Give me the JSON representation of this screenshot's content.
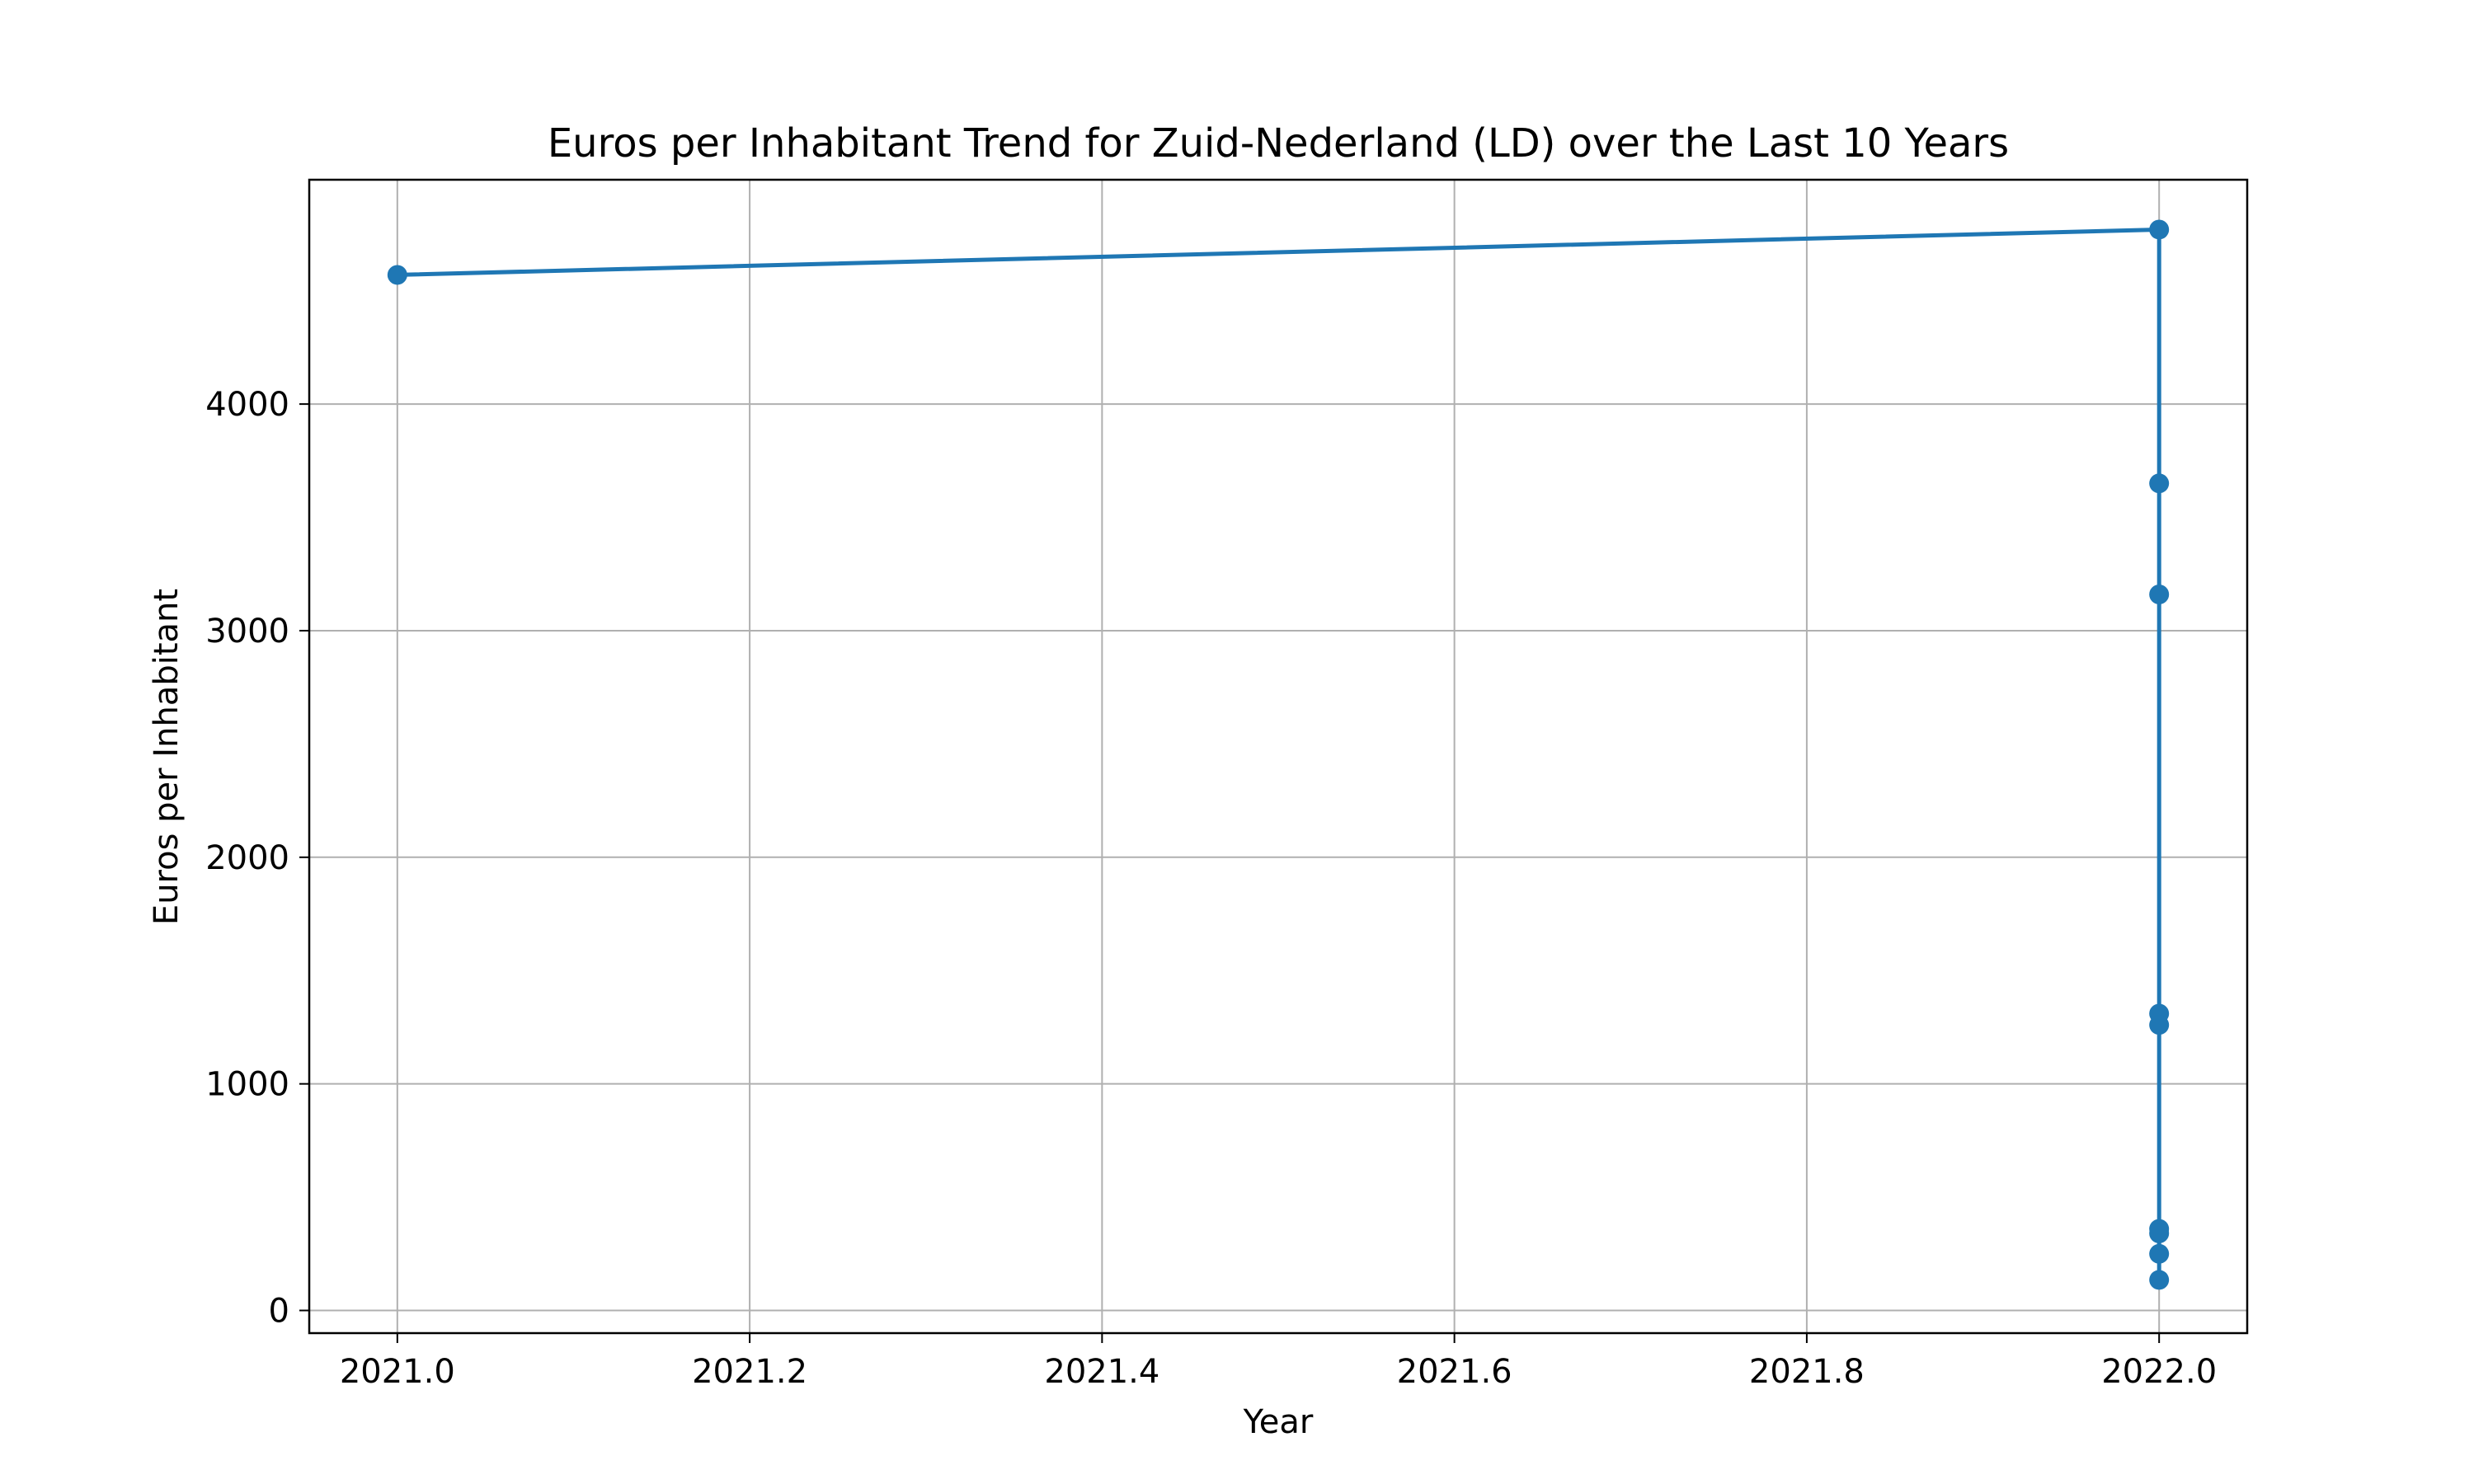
{
  "chart_data": {
    "type": "line",
    "title": "Euros per Inhabitant Trend for Zuid-Nederland (LD) over the Last 10 Years",
    "xlabel": "Year",
    "ylabel": "Euros per Inhabitant",
    "xlim": [
      2020.95,
      2022.05
    ],
    "ylim": [
      -100,
      4990
    ],
    "x_ticks": [
      2021.0,
      2021.2,
      2021.4,
      2021.6,
      2021.8,
      2022.0
    ],
    "x_tick_labels": [
      "2021.0",
      "2021.2",
      "2021.4",
      "2021.6",
      "2021.8",
      "2022.0"
    ],
    "y_ticks": [
      0,
      1000,
      2000,
      3000,
      4000
    ],
    "y_tick_labels": [
      "0",
      "1000",
      "2000",
      "3000",
      "4000"
    ],
    "grid": true,
    "series": [
      {
        "color": "#1f77b4",
        "marker": "circle",
        "points": [
          {
            "x": 2021.0,
            "y": 4570
          },
          {
            "x": 2022.0,
            "y": 4770
          },
          {
            "x": 2022.0,
            "y": 3650
          },
          {
            "x": 2022.0,
            "y": 3160
          },
          {
            "x": 2022.0,
            "y": 1310
          },
          {
            "x": 2022.0,
            "y": 1260
          },
          {
            "x": 2022.0,
            "y": 360
          },
          {
            "x": 2022.0,
            "y": 340
          },
          {
            "x": 2022.0,
            "y": 250
          },
          {
            "x": 2022.0,
            "y": 135
          }
        ]
      }
    ]
  }
}
